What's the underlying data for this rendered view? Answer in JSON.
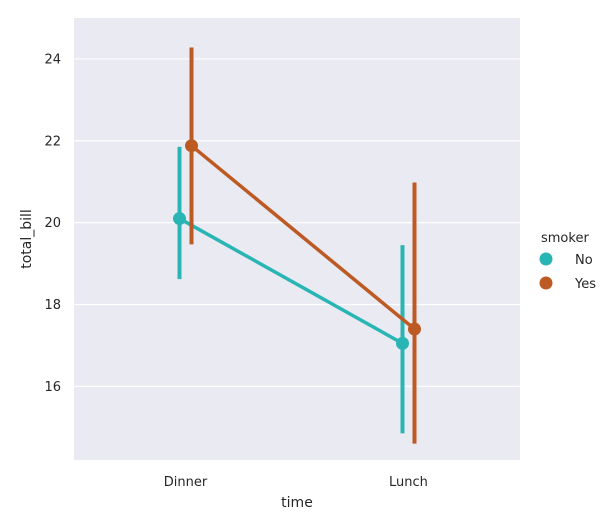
{
  "chart_data": {
    "type": "line",
    "subtype": "point-plot",
    "xlabel": "time",
    "ylabel": "total_bill",
    "categories": [
      "Dinner",
      "Lunch"
    ],
    "ylim": [
      14.2,
      25.0
    ],
    "yticks": [
      16,
      18,
      20,
      22,
      24
    ],
    "grid": true,
    "legend": {
      "title": "smoker",
      "placement": "center-right",
      "entries": [
        "No",
        "Yes"
      ]
    },
    "series": [
      {
        "name": "No",
        "color": "#2ab5b5",
        "values": [
          20.1,
          17.05
        ],
        "ci_low": [
          18.62,
          14.85
        ],
        "ci_high": [
          21.85,
          19.45
        ]
      },
      {
        "name": "Yes",
        "color": "#bd5a24",
        "values": [
          21.88,
          17.4
        ],
        "ci_low": [
          19.47,
          14.6
        ],
        "ci_high": [
          24.28,
          20.98
        ]
      }
    ]
  }
}
